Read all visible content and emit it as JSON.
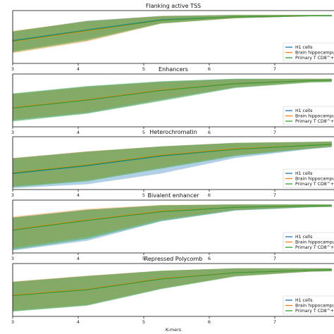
{
  "figure": {
    "xlabel": "K-mers"
  },
  "x_ticks": [
    3,
    4,
    5,
    6,
    7
  ],
  "legend": [
    "H1 cells",
    "Brain hippocampus",
    "Primary T CD8^+ ..."
  ],
  "colors": {
    "H1 cells": "#1f77b4",
    "Brain hippocampus": "#ff7f0e",
    "Primary T CD8^+ ...": "#2ca02c"
  },
  "chart_data": [
    {
      "type": "area",
      "title": "Flanking active TSS",
      "x": [
        3,
        4,
        5,
        6,
        7,
        7.3
      ],
      "ylim": [
        0.0,
        1.0
      ],
      "series": [
        {
          "name": "H1 cells",
          "values": [
            0.44,
            0.66,
            0.87,
            0.93,
            0.95,
            0.95
          ],
          "lower": [
            0.22,
            0.47,
            0.8,
            0.9,
            0.94,
            0.94
          ],
          "upper": [
            0.62,
            0.85,
            0.95,
            0.97,
            0.97,
            0.97
          ]
        },
        {
          "name": "Brain hippocampus",
          "values": [
            0.42,
            0.64,
            0.86,
            0.93,
            0.95,
            0.95
          ],
          "lower": [
            0.18,
            0.42,
            0.79,
            0.9,
            0.94,
            0.94
          ],
          "upper": [
            0.64,
            0.84,
            0.95,
            0.97,
            0.97,
            0.97
          ]
        },
        {
          "name": "Primary T CD8^+ ...",
          "values": [
            0.43,
            0.65,
            0.86,
            0.93,
            0.95,
            0.95
          ],
          "lower": [
            0.2,
            0.44,
            0.79,
            0.9,
            0.94,
            0.94
          ],
          "upper": [
            0.63,
            0.84,
            0.94,
            0.97,
            0.97,
            0.97
          ]
        }
      ]
    },
    {
      "type": "area",
      "title": "Enhancers",
      "x": [
        3,
        4,
        5,
        6,
        7,
        7.3
      ],
      "ylim": [
        0.0,
        1.0
      ],
      "series": [
        {
          "name": "H1 cells",
          "values": [
            0.36,
            0.52,
            0.72,
            0.86,
            0.92,
            0.93
          ],
          "lower": [
            0.1,
            0.25,
            0.52,
            0.78,
            0.89,
            0.9
          ],
          "upper": [
            0.65,
            0.8,
            0.9,
            0.96,
            0.96,
            0.96
          ]
        },
        {
          "name": "Brain hippocampus",
          "values": [
            0.37,
            0.53,
            0.73,
            0.86,
            0.92,
            0.93
          ],
          "lower": [
            0.12,
            0.27,
            0.54,
            0.79,
            0.89,
            0.9
          ],
          "upper": [
            0.64,
            0.79,
            0.89,
            0.95,
            0.96,
            0.96
          ]
        },
        {
          "name": "Primary T CD8^+ ...",
          "values": [
            0.36,
            0.52,
            0.72,
            0.86,
            0.92,
            0.93
          ],
          "lower": [
            0.08,
            0.24,
            0.5,
            0.77,
            0.88,
            0.89
          ],
          "upper": [
            0.66,
            0.81,
            0.91,
            0.96,
            0.96,
            0.96
          ]
        }
      ]
    },
    {
      "type": "area",
      "title": "Heterochromatin",
      "x": [
        3,
        4,
        5,
        6,
        7,
        7.3
      ],
      "ylim": [
        0.0,
        1.0
      ],
      "series": [
        {
          "name": "H1 cells",
          "values": [
            0.3,
            0.46,
            0.66,
            0.8,
            0.88,
            0.9
          ],
          "lower": [
            0.0,
            0.08,
            0.3,
            0.62,
            0.8,
            0.84
          ],
          "upper": [
            0.62,
            0.75,
            0.86,
            0.93,
            0.95,
            0.96
          ]
        },
        {
          "name": "Brain hippocampus",
          "values": [
            0.32,
            0.48,
            0.68,
            0.81,
            0.88,
            0.9
          ],
          "lower": [
            0.04,
            0.16,
            0.42,
            0.68,
            0.82,
            0.85
          ],
          "upper": [
            0.62,
            0.76,
            0.86,
            0.93,
            0.95,
            0.96
          ]
        },
        {
          "name": "Primary T CD8^+ ...",
          "values": [
            0.31,
            0.47,
            0.67,
            0.8,
            0.88,
            0.9
          ],
          "lower": [
            0.02,
            0.14,
            0.4,
            0.66,
            0.81,
            0.85
          ],
          "upper": [
            0.61,
            0.75,
            0.86,
            0.93,
            0.95,
            0.96
          ]
        }
      ]
    },
    {
      "type": "area",
      "title": "Bivalent enhancer",
      "x": [
        3,
        4,
        5,
        6,
        7,
        7.3
      ],
      "ylim": [
        0.0,
        1.0
      ],
      "series": [
        {
          "name": "H1 cells",
          "values": [
            0.44,
            0.64,
            0.82,
            0.91,
            0.94,
            0.94
          ],
          "lower": [
            0.02,
            0.22,
            0.62,
            0.84,
            0.91,
            0.92
          ],
          "upper": [
            0.7,
            0.86,
            0.95,
            0.97,
            0.97,
            0.97
          ]
        },
        {
          "name": "Brain hippocampus",
          "values": [
            0.45,
            0.65,
            0.83,
            0.91,
            0.94,
            0.94
          ],
          "lower": [
            0.08,
            0.3,
            0.66,
            0.86,
            0.92,
            0.92
          ],
          "upper": [
            0.72,
            0.88,
            0.96,
            0.97,
            0.97,
            0.97
          ]
        },
        {
          "name": "Primary T CD8^+ ...",
          "values": [
            0.44,
            0.64,
            0.82,
            0.91,
            0.94,
            0.94
          ],
          "lower": [
            0.04,
            0.26,
            0.63,
            0.85,
            0.91,
            0.92
          ],
          "upper": [
            0.7,
            0.86,
            0.95,
            0.97,
            0.97,
            0.97
          ]
        }
      ]
    },
    {
      "type": "area",
      "title": "Repressed Polycomb",
      "x": [
        3,
        4,
        5,
        6,
        7,
        7.3
      ],
      "ylim": [
        0.0,
        1.0
      ],
      "series": [
        {
          "name": "H1 cells",
          "values": [
            0.4,
            0.52,
            0.74,
            0.87,
            0.92,
            0.93
          ],
          "lower": [
            0.08,
            0.2,
            0.54,
            0.8,
            0.89,
            0.9
          ],
          "upper": [
            0.68,
            0.8,
            0.91,
            0.96,
            0.96,
            0.96
          ]
        },
        {
          "name": "Brain hippocampus",
          "values": [
            0.41,
            0.53,
            0.75,
            0.87,
            0.92,
            0.93
          ],
          "lower": [
            0.09,
            0.21,
            0.55,
            0.8,
            0.89,
            0.9
          ],
          "upper": [
            0.69,
            0.81,
            0.91,
            0.96,
            0.96,
            0.96
          ]
        },
        {
          "name": "Primary T CD8^+ ...",
          "values": [
            0.4,
            0.52,
            0.74,
            0.87,
            0.92,
            0.93
          ],
          "lower": [
            0.07,
            0.19,
            0.53,
            0.79,
            0.89,
            0.9
          ],
          "upper": [
            0.68,
            0.8,
            0.91,
            0.96,
            0.96,
            0.96
          ]
        }
      ]
    }
  ]
}
